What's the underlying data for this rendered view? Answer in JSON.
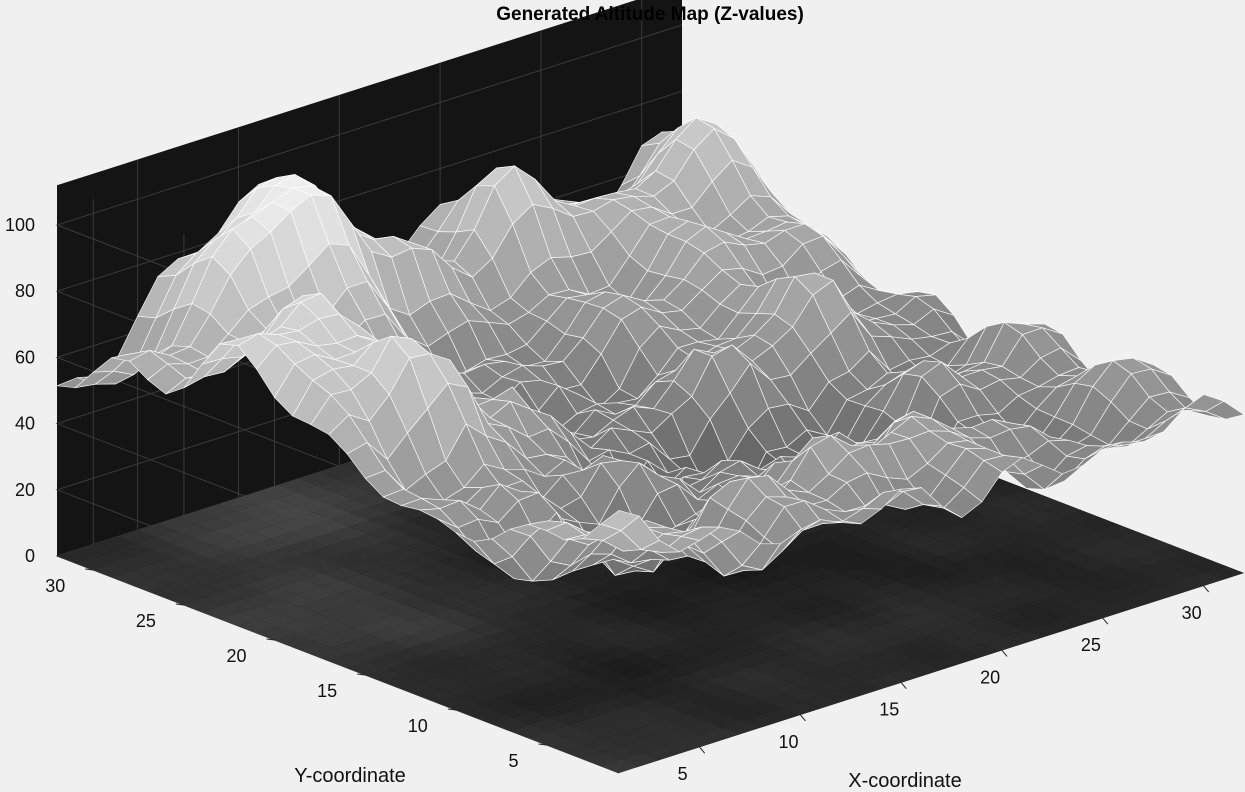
{
  "chart_data": {
    "type": "surface",
    "title": "Generated Altitude Map (Z-values)",
    "xlabel": "X-coordinate",
    "ylabel": "Y-coordinate",
    "zlabel": "",
    "x_ticks": [
      5,
      10,
      15,
      20,
      25,
      30
    ],
    "y_ticks": [
      5,
      10,
      15,
      20,
      25,
      30
    ],
    "z_ticks": [
      0,
      20,
      40,
      60,
      80,
      100
    ],
    "xlim": [
      1,
      32
    ],
    "ylim": [
      1,
      32
    ],
    "zlim": [
      0,
      100
    ],
    "grid": true,
    "colormap": "gray",
    "floor_projection": "contour-shaded",
    "box_background": "#141414",
    "grid_size": [
      32,
      32
    ],
    "surface_features": {
      "peak_max_z": 100,
      "peak_location": {
        "x": 10,
        "y": 30
      },
      "secondary_peaks": [
        {
          "x": 3,
          "y": 22,
          "z": 73
        },
        {
          "x": 20,
          "y": 30,
          "z": 72
        },
        {
          "x": 31,
          "y": 29,
          "z": 65
        }
      ],
      "front_corner_z": 68,
      "min_z": 4
    }
  },
  "colors": {
    "figure_background": "#f0f0f0",
    "axes_background": "#141414",
    "mesh_edge": "#ffffff"
  }
}
